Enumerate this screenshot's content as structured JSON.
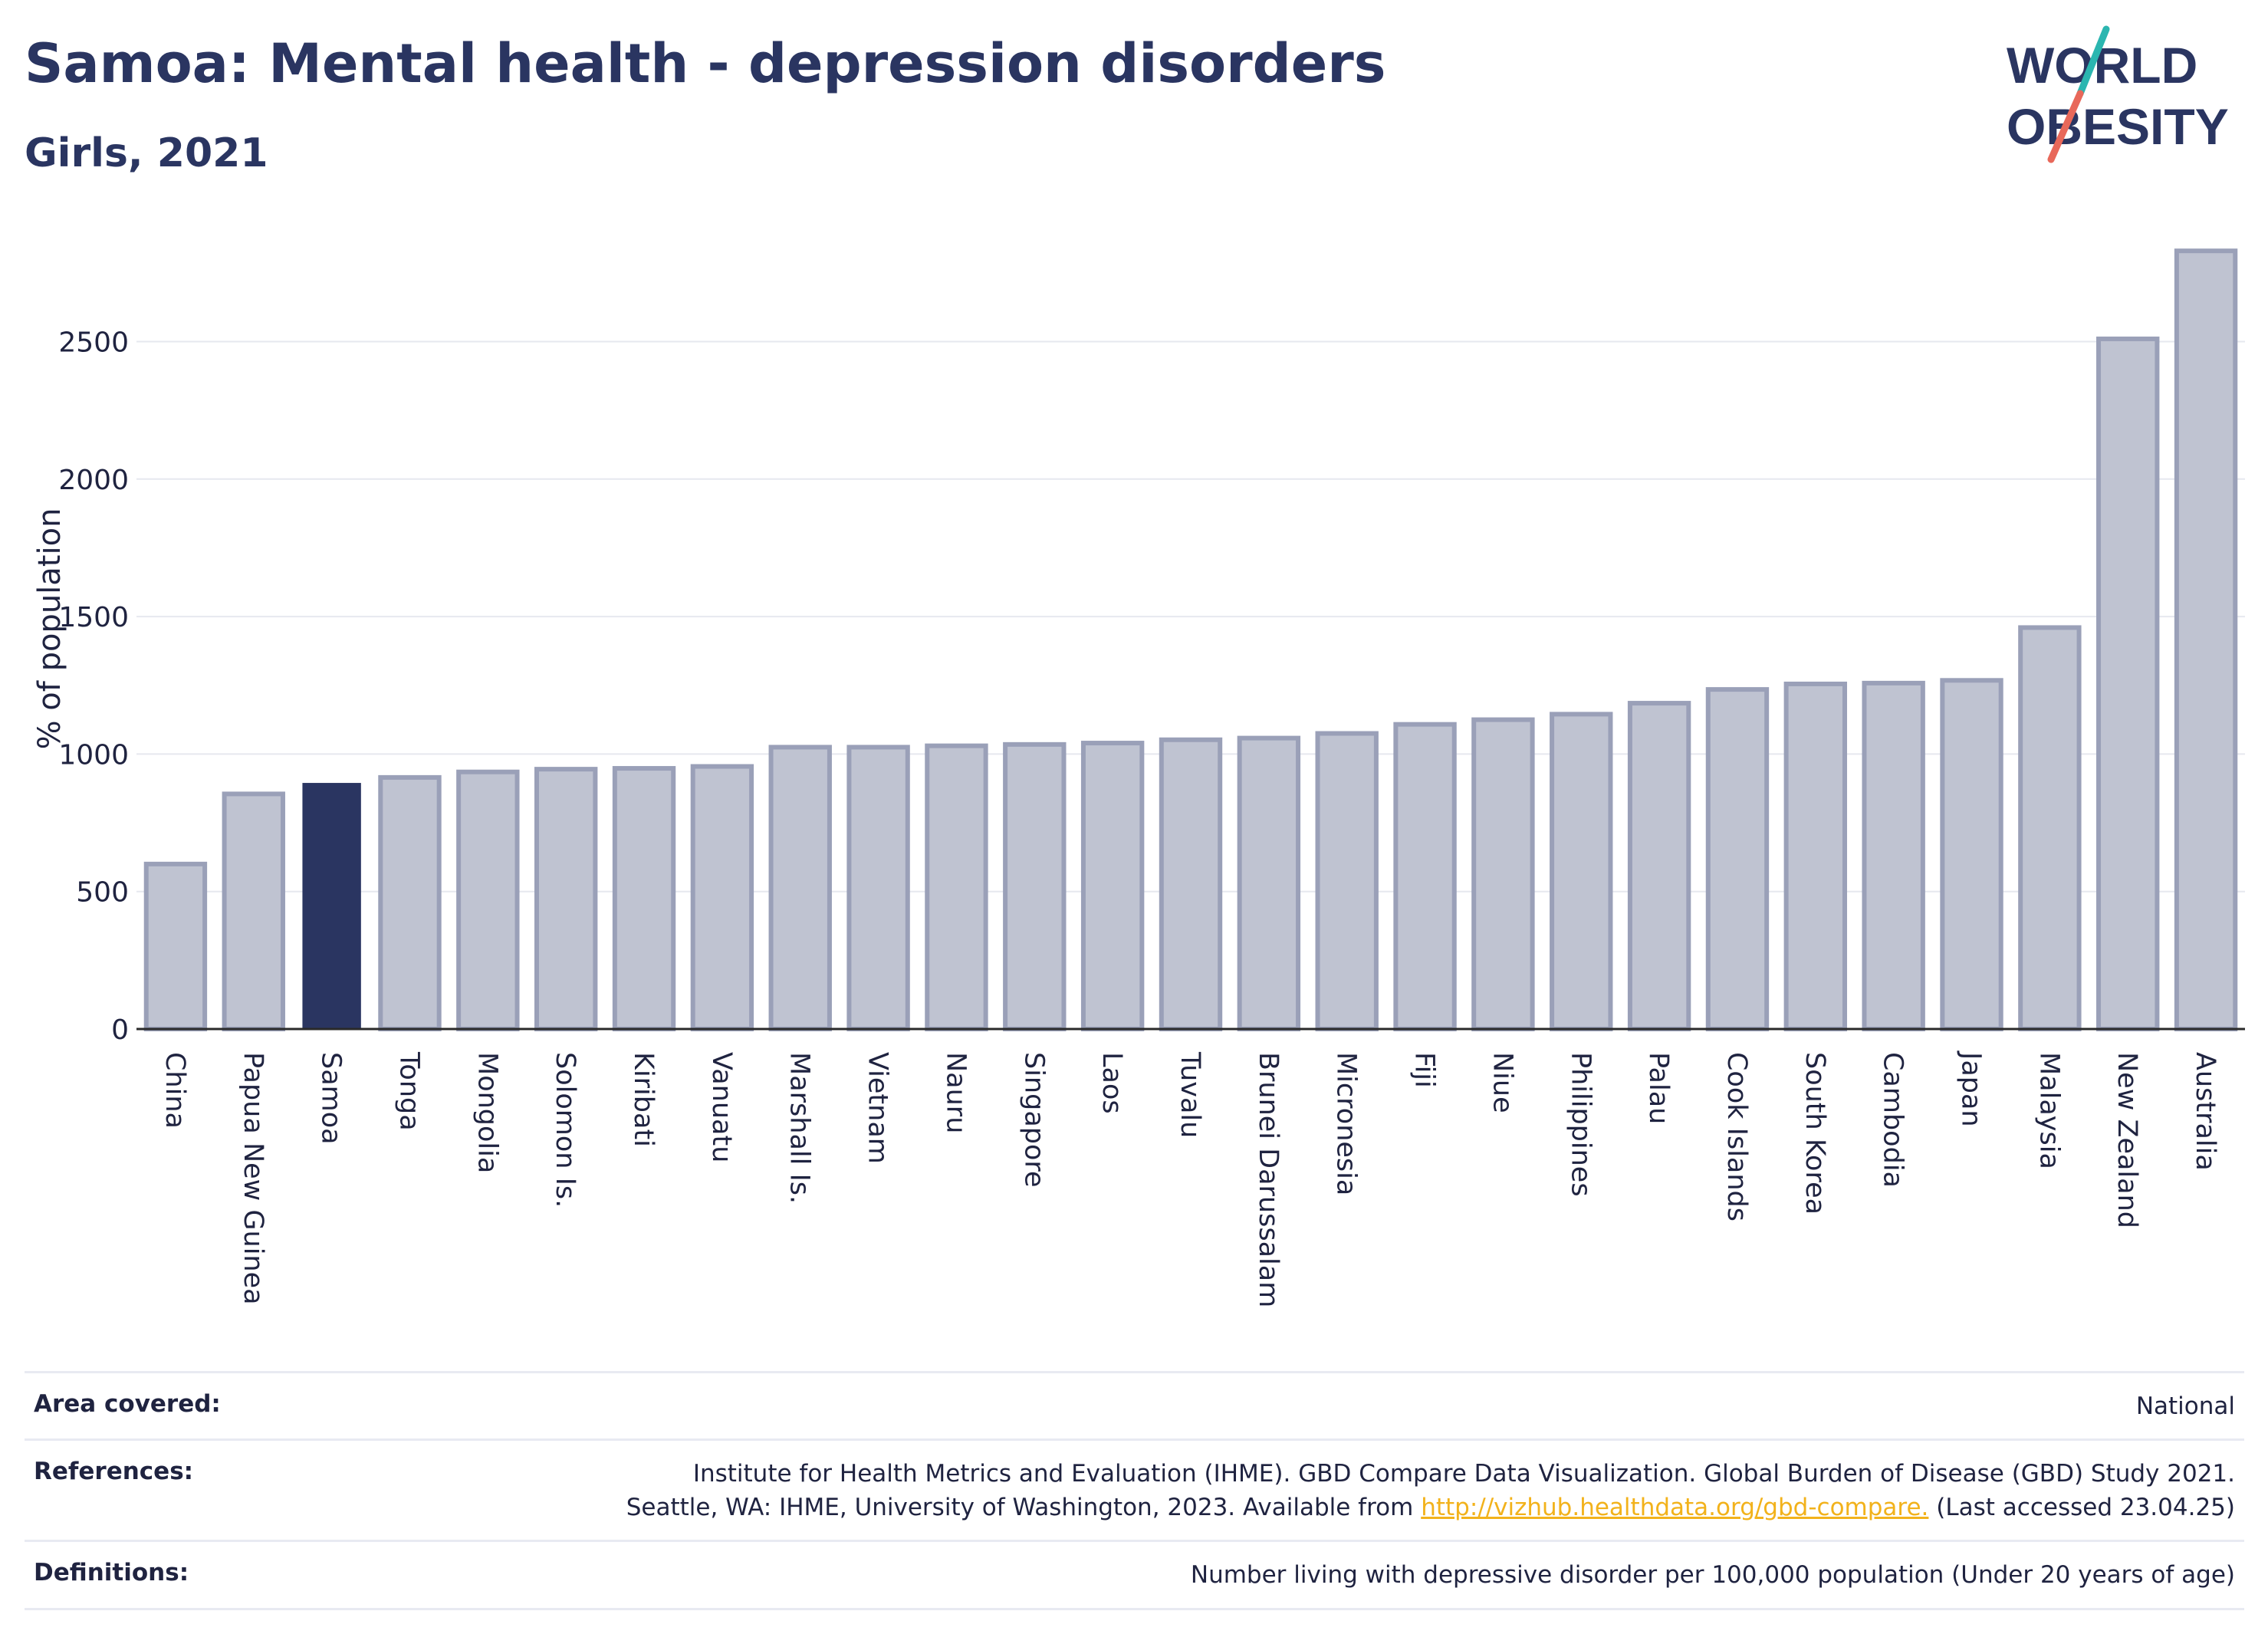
{
  "header": {
    "title": "Samoa: Mental health - depression disorders",
    "subtitle": "Girls, 2021"
  },
  "logo": {
    "line1": "WORLD",
    "line2": "OBESITY",
    "colors": {
      "text": "#2a3561",
      "slash_teal": "#2bb6b0",
      "slash_red": "#e8685a"
    }
  },
  "chart_data": {
    "type": "bar",
    "ylabel": "% of population",
    "xlabel": "",
    "ylim": [
      0,
      2850
    ],
    "yticks": [
      0,
      500,
      1000,
      1500,
      2000,
      2500
    ],
    "grid": true,
    "highlight": "Samoa",
    "colors": {
      "bar": "#bfc3d1",
      "bar_border": "#9aa0b8",
      "highlight": "#2a3561"
    },
    "categories": [
      "China",
      "Papua New Guinea",
      "Samoa",
      "Tonga",
      "Mongolia",
      "Solomon Is.",
      "Kiribati",
      "Vanuatu",
      "Marshall Is.",
      "Vietnam",
      "Nauru",
      "Singapore",
      "Laos",
      "Tuvalu",
      "Brunei Darussalam",
      "Micronesia",
      "Fiji",
      "Niue",
      "Philippines",
      "Palau",
      "Cook Islands",
      "South Korea",
      "Cambodia",
      "Japan",
      "Malaysia",
      "New Zealand",
      "Australia"
    ],
    "values": [
      600,
      855,
      895,
      915,
      935,
      945,
      948,
      955,
      1025,
      1025,
      1030,
      1035,
      1040,
      1052,
      1058,
      1075,
      1108,
      1125,
      1145,
      1185,
      1235,
      1255,
      1258,
      1268,
      1460,
      2510,
      2830
    ]
  },
  "footer": {
    "area_label": "Area covered:",
    "area_value": "National",
    "references_label": "References:",
    "references_line1": "Institute for Health Metrics and Evaluation (IHME). GBD Compare Data Visualization. Global Burden of Disease (GBD) Study 2021.",
    "references_line2_pre": "Seattle, WA: IHME, University of Washington, 2023. Available from ",
    "references_link": "http://vizhub.healthdata.org/gbd-compare.",
    "references_line2_post": " (Last accessed 23.04.25)",
    "definitions_label": "Definitions:",
    "definitions_value": "Number living with depressive disorder per 100,000 population (Under 20 years of age)"
  }
}
